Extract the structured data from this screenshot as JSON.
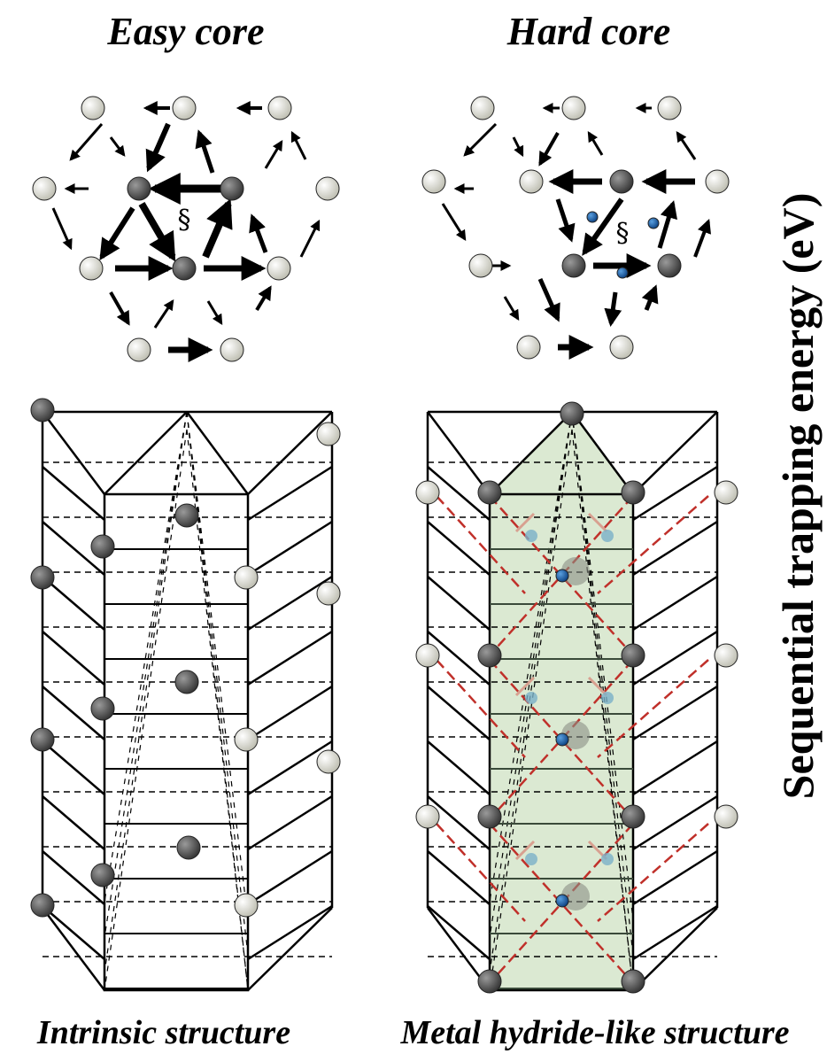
{
  "panels": [
    {
      "title": "Easy core",
      "symbol": "§",
      "caption": "Intrinsic structure"
    },
    {
      "title": "Hard core",
      "symbol": "§",
      "caption": "Metal hydride-like structure"
    }
  ],
  "axis_label": "Sequential trapping energy (eV)"
}
